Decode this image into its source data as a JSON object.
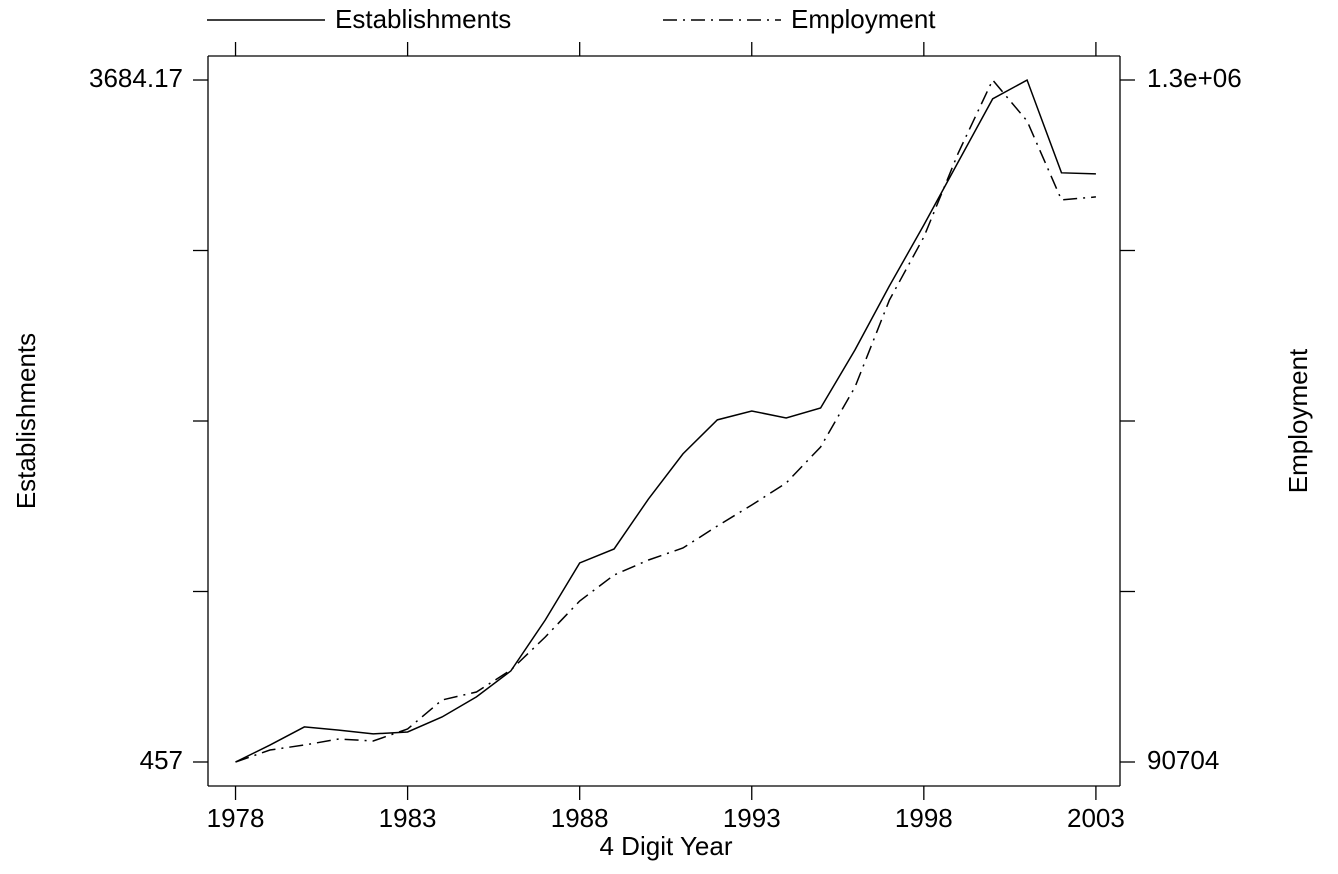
{
  "chart_data": {
    "type": "line",
    "x_label": "4 Digit Year",
    "y_label": "Establishments",
    "y2_label": "Employment",
    "legend": "top",
    "x": [
      1978,
      1979,
      1980,
      1981,
      1982,
      1983,
      1984,
      1985,
      1986,
      1987,
      1988,
      1989,
      1990,
      1991,
      1992,
      1993,
      1994,
      1995,
      1996,
      1997,
      1998,
      1999,
      2000,
      2001,
      2002,
      2003
    ],
    "series": [
      {
        "name": "Establishments",
        "color": "#000000",
        "dash": "solid",
        "values": [
          457,
          537,
          623,
          608,
          590,
          599,
          670,
          765,
          888,
          1129,
          1399,
          1465,
          1702,
          1915,
          2076,
          2118,
          2085,
          2132,
          2407,
          2710,
          2998,
          3297,
          3595,
          3684,
          3245,
          3240
        ]
      },
      {
        "name": "Employment",
        "color": "#000000",
        "dash": "dashdot",
        "axis": "y2",
        "values": [
          90704,
          111982,
          120848,
          131487,
          127941,
          149218,
          200640,
          214825,
          253835,
          312349,
          376183,
          422285,
          448882,
          470160,
          509169,
          546405,
          585414,
          649248,
          755638,
          909902,
          1021610,
          1170556,
          1300000,
          1227299,
          1087380,
          1092700
        ]
      }
    ],
    "xlim": [
      1977.2,
      2003.7
    ],
    "xticks": [
      1978,
      1983,
      1988,
      1993,
      1998,
      2003
    ],
    "ylim": [
      343.4,
      3797.8
    ],
    "yticks": [
      457,
      {
        "value": 1263.79,
        "label": null
      },
      {
        "value": 2070.59,
        "label": null
      },
      {
        "value": 2877.38,
        "label": null
      },
      3684.17
    ],
    "y2lim": [
      48148,
      1342556
    ],
    "y2ticks": [
      90704,
      {
        "value": 393028,
        "label": null
      },
      {
        "value": 695352,
        "label": null
      },
      {
        "value": 997676,
        "label": null
      },
      {
        "value": 1300000,
        "label": "1.3e+06"
      }
    ]
  }
}
